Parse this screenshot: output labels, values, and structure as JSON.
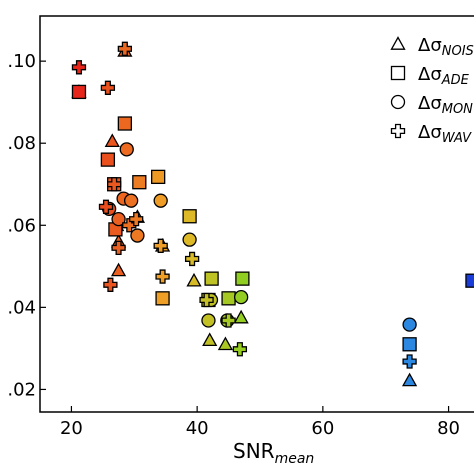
{
  "chart_data": {
    "type": "scatter",
    "xlabel_main": "SNR",
    "xlabel_sub": "mean",
    "ylabel": "",
    "xlim": [
      15,
      85
    ],
    "ylim": [
      0.0145,
      0.111
    ],
    "x_ticks": [
      20,
      40,
      60,
      80
    ],
    "x_tick_labels": [
      "20",
      "40",
      "60",
      "80"
    ],
    "y_ticks": [
      0.02,
      0.04,
      0.06,
      0.08,
      0.1
    ],
    "y_tick_labels": [
      ".02",
      ".04",
      ".06",
      ".08",
      ".10"
    ],
    "grid": false,
    "legend_position": "top-right",
    "legend": [
      {
        "marker": "triangle",
        "label_main": "Δσ",
        "label_sub": "NOIS"
      },
      {
        "marker": "square",
        "label_main": "Δσ",
        "label_sub": "ADE"
      },
      {
        "marker": "circle",
        "label_main": "Δσ",
        "label_sub": "MON"
      },
      {
        "marker": "cross",
        "label_main": "Δσ",
        "label_sub": "WAV"
      }
    ],
    "color_scale": {
      "low_snr": "#e8231a",
      "mid_snr": "#7ed321",
      "high_snr": "#1a3ad8"
    },
    "series": [
      {
        "marker": "triangle",
        "points": [
          {
            "x": 21.2,
            "y": 0.0925
          },
          {
            "x": 26.5,
            "y": 0.0805
          },
          {
            "x": 28.5,
            "y": 0.1025
          },
          {
            "x": 27.2,
            "y": 0.06
          },
          {
            "x": 27.5,
            "y": 0.056
          },
          {
            "x": 27.5,
            "y": 0.049
          },
          {
            "x": 30.5,
            "y": 0.062
          },
          {
            "x": 34.5,
            "y": 0.055
          },
          {
            "x": 39.5,
            "y": 0.0465
          },
          {
            "x": 42.0,
            "y": 0.032
          },
          {
            "x": 44.5,
            "y": 0.031
          },
          {
            "x": 47.0,
            "y": 0.0375
          },
          {
            "x": 73.8,
            "y": 0.0222
          }
        ]
      },
      {
        "marker": "square",
        "points": [
          {
            "x": 21.2,
            "y": 0.0925
          },
          {
            "x": 25.8,
            "y": 0.076
          },
          {
            "x": 28.5,
            "y": 0.0848
          },
          {
            "x": 26.8,
            "y": 0.07
          },
          {
            "x": 27.0,
            "y": 0.059
          },
          {
            "x": 30.8,
            "y": 0.0705
          },
          {
            "x": 33.8,
            "y": 0.0718
          },
          {
            "x": 34.5,
            "y": 0.0422
          },
          {
            "x": 38.8,
            "y": 0.0622
          },
          {
            "x": 41.8,
            "y": 0.0418
          },
          {
            "x": 42.3,
            "y": 0.047
          },
          {
            "x": 45.0,
            "y": 0.0422
          },
          {
            "x": 47.2,
            "y": 0.047
          },
          {
            "x": 73.8,
            "y": 0.031
          },
          {
            "x": 83.8,
            "y": 0.0465
          }
        ]
      },
      {
        "marker": "circle",
        "points": [
          {
            "x": 26.0,
            "y": 0.064
          },
          {
            "x": 27.5,
            "y": 0.0615
          },
          {
            "x": 28.3,
            "y": 0.0665
          },
          {
            "x": 28.8,
            "y": 0.0785
          },
          {
            "x": 30.5,
            "y": 0.0575
          },
          {
            "x": 29.5,
            "y": 0.066
          },
          {
            "x": 34.2,
            "y": 0.066
          },
          {
            "x": 38.8,
            "y": 0.0565
          },
          {
            "x": 41.8,
            "y": 0.0368
          },
          {
            "x": 42.2,
            "y": 0.0418
          },
          {
            "x": 44.8,
            "y": 0.0368
          },
          {
            "x": 47.0,
            "y": 0.0425
          },
          {
            "x": 73.8,
            "y": 0.0358
          }
        ]
      },
      {
        "marker": "cross",
        "points": [
          {
            "x": 21.2,
            "y": 0.0985
          },
          {
            "x": 25.8,
            "y": 0.0935
          },
          {
            "x": 28.5,
            "y": 0.103
          },
          {
            "x": 26.2,
            "y": 0.0455
          },
          {
            "x": 25.5,
            "y": 0.0645
          },
          {
            "x": 26.8,
            "y": 0.07
          },
          {
            "x": 27.5,
            "y": 0.0545
          },
          {
            "x": 29.2,
            "y": 0.06
          },
          {
            "x": 30.3,
            "y": 0.0615
          },
          {
            "x": 34.2,
            "y": 0.055
          },
          {
            "x": 34.5,
            "y": 0.0475
          },
          {
            "x": 39.2,
            "y": 0.0518
          },
          {
            "x": 41.5,
            "y": 0.0418
          },
          {
            "x": 45.0,
            "y": 0.0368
          },
          {
            "x": 46.8,
            "y": 0.0298
          },
          {
            "x": 73.8,
            "y": 0.0268
          }
        ]
      }
    ]
  }
}
